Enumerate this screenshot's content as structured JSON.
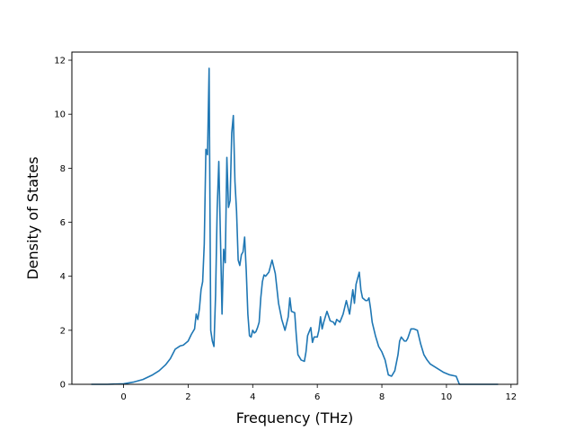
{
  "chart_data": {
    "type": "line",
    "title": "",
    "xlabel": "Frequency (THz)",
    "ylabel": "Density of States",
    "xlim": [
      -1.6,
      12.2
    ],
    "ylim": [
      0,
      12.3
    ],
    "grid": false,
    "legend": "none",
    "xticks": [
      0,
      2,
      4,
      6,
      8,
      10,
      12
    ],
    "yticks": [
      0,
      2,
      4,
      6,
      8,
      10,
      12
    ],
    "line_color": "#1f77b4",
    "series": [
      {
        "x": [
          -1.0,
          -0.5,
          0.0,
          0.3,
          0.6,
          0.9,
          1.1,
          1.3,
          1.45,
          1.6,
          1.75,
          1.85,
          2.0,
          2.1,
          2.2,
          2.25,
          2.3,
          2.35,
          2.4,
          2.45,
          2.5,
          2.55,
          2.6,
          2.65,
          2.7,
          2.75,
          2.8,
          2.85,
          2.9,
          2.95,
          3.0,
          3.05,
          3.1,
          3.15,
          3.2,
          3.25,
          3.3,
          3.35,
          3.4,
          3.45,
          3.5,
          3.55,
          3.6,
          3.65,
          3.7,
          3.75,
          3.8,
          3.85,
          3.9,
          3.95,
          4.0,
          4.05,
          4.1,
          4.15,
          4.2,
          4.25,
          4.3,
          4.35,
          4.4,
          4.5,
          4.6,
          4.7,
          4.8,
          4.9,
          5.0,
          5.1,
          5.15,
          5.2,
          5.3,
          5.35,
          5.4,
          5.5,
          5.6,
          5.65,
          5.7,
          5.8,
          5.85,
          5.9,
          6.0,
          6.05,
          6.1,
          6.15,
          6.2,
          6.3,
          6.4,
          6.5,
          6.55,
          6.6,
          6.7,
          6.8,
          6.9,
          7.0,
          7.1,
          7.15,
          7.2,
          7.3,
          7.35,
          7.4,
          7.5,
          7.55,
          7.6,
          7.65,
          7.7,
          7.8,
          7.9,
          8.0,
          8.1,
          8.2,
          8.3,
          8.4,
          8.5,
          8.55,
          8.6,
          8.7,
          8.75,
          8.8,
          8.9,
          9.0,
          9.1,
          9.2,
          9.3,
          9.4,
          9.5,
          9.7,
          9.9,
          10.1,
          10.3,
          10.4,
          10.5,
          10.6,
          11.0,
          11.6
        ],
        "y": [
          0.0,
          0.0,
          0.02,
          0.08,
          0.18,
          0.35,
          0.5,
          0.72,
          0.95,
          1.3,
          1.42,
          1.45,
          1.6,
          1.85,
          2.05,
          2.6,
          2.4,
          2.8,
          3.5,
          3.8,
          5.2,
          8.7,
          8.5,
          11.7,
          2.0,
          1.6,
          1.4,
          3.3,
          6.5,
          8.25,
          5.5,
          2.6,
          5.0,
          4.5,
          8.4,
          6.55,
          6.8,
          9.3,
          9.95,
          7.5,
          6.4,
          4.6,
          4.4,
          4.8,
          4.9,
          5.45,
          4.2,
          2.6,
          1.8,
          1.75,
          2.0,
          1.9,
          1.95,
          2.1,
          2.3,
          3.2,
          3.8,
          4.05,
          4.0,
          4.15,
          4.6,
          4.1,
          3.0,
          2.4,
          2.0,
          2.5,
          3.2,
          2.7,
          2.65,
          1.8,
          1.1,
          0.9,
          0.85,
          1.2,
          1.8,
          2.1,
          1.55,
          1.75,
          1.75,
          2.0,
          2.5,
          2.05,
          2.3,
          2.7,
          2.35,
          2.3,
          2.2,
          2.4,
          2.3,
          2.6,
          3.1,
          2.6,
          3.5,
          3.0,
          3.7,
          4.15,
          3.5,
          3.2,
          3.1,
          3.1,
          3.2,
          2.8,
          2.3,
          1.8,
          1.4,
          1.2,
          0.9,
          0.35,
          0.3,
          0.5,
          1.1,
          1.6,
          1.75,
          1.6,
          1.6,
          1.7,
          2.05,
          2.05,
          2.0,
          1.5,
          1.1,
          0.9,
          0.75,
          0.6,
          0.45,
          0.35,
          0.3,
          0.0,
          0.0,
          0.0,
          0.0,
          0.0
        ]
      }
    ]
  }
}
